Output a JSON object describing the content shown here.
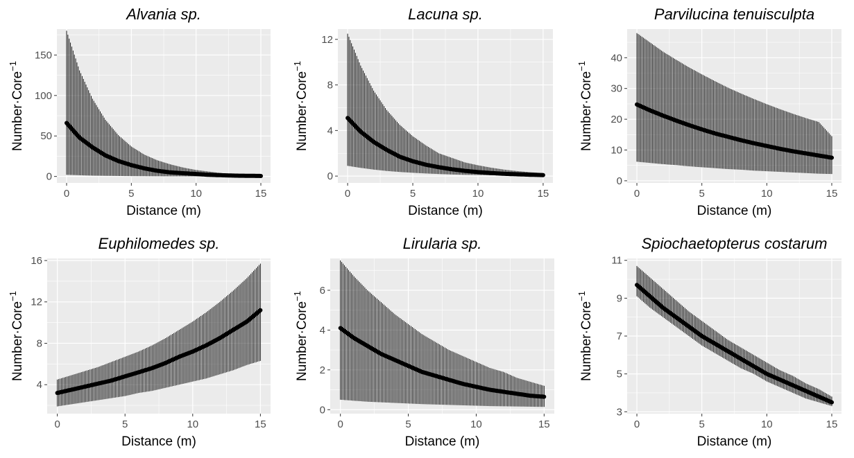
{
  "chart_data": [
    {
      "type": "line",
      "title": "Alvania sp.",
      "xlabel": "Distance (m)",
      "ylabel": "Number·Core",
      "ylabel_superscript": "−1",
      "xlim": [
        -0.75,
        15.75
      ],
      "ylim": [
        -8,
        182
      ],
      "xticks": [
        0,
        5,
        10,
        15
      ],
      "yticks": [
        0,
        50,
        100,
        150
      ],
      "series": [
        {
          "x": [
            0,
            1,
            2,
            3,
            4,
            5,
            6,
            7,
            8,
            9,
            10,
            11,
            12,
            13,
            14,
            15
          ],
          "y": [
            66,
            48,
            36,
            26,
            19,
            14,
            10,
            7,
            5,
            4,
            3,
            2,
            1.5,
            1,
            0.8,
            0.6
          ],
          "upper": [
            180,
            131,
            96,
            70,
            51,
            37,
            27,
            20,
            15,
            11,
            8,
            6,
            4,
            3,
            2,
            1.5
          ],
          "lower": [
            2,
            1.5,
            1,
            0.8,
            0.6,
            0.4,
            0.3,
            0.2,
            0.15,
            0.1,
            0.08,
            0.06,
            0.04,
            0.03,
            0.02,
            0.01
          ]
        }
      ]
    },
    {
      "type": "line",
      "title": "Lacuna sp.",
      "xlabel": "Distance (m)",
      "ylabel": "Number·Core",
      "ylabel_superscript": "−1",
      "xlim": [
        -0.75,
        15.75
      ],
      "ylim": [
        -0.6,
        12.9
      ],
      "xticks": [
        0,
        5,
        10,
        15
      ],
      "yticks": [
        0,
        4,
        8,
        12
      ],
      "series": [
        {
          "x": [
            0,
            1,
            2,
            3,
            4,
            5,
            6,
            7,
            8,
            9,
            10,
            11,
            12,
            13,
            14,
            15
          ],
          "y": [
            5.1,
            3.9,
            3.0,
            2.3,
            1.7,
            1.3,
            1.0,
            0.78,
            0.6,
            0.46,
            0.35,
            0.27,
            0.2,
            0.16,
            0.12,
            0.09
          ],
          "upper": [
            12.5,
            9.7,
            7.5,
            5.8,
            4.5,
            3.5,
            2.7,
            2.0,
            1.6,
            1.2,
            0.95,
            0.74,
            0.57,
            0.44,
            0.34,
            0.26
          ],
          "lower": [
            0.9,
            0.72,
            0.57,
            0.45,
            0.36,
            0.29,
            0.23,
            0.18,
            0.14,
            0.11,
            0.09,
            0.07,
            0.06,
            0.05,
            0.04,
            0.03
          ]
        }
      ]
    },
    {
      "type": "line",
      "title": "Parvilucina tenuisculpta",
      "xlabel": "Distance (m)",
      "ylabel": "Number·Core",
      "ylabel_superscript": "−1",
      "xlim": [
        -0.75,
        15.75
      ],
      "ylim": [
        -0.7,
        49.3
      ],
      "xticks": [
        0,
        5,
        10,
        15
      ],
      "yticks": [
        0,
        10,
        20,
        30,
        40
      ],
      "series": [
        {
          "x": [
            0,
            1,
            2,
            3,
            4,
            5,
            6,
            7,
            8,
            9,
            10,
            11,
            12,
            13,
            14,
            15
          ],
          "y": [
            24.8,
            22.9,
            21.2,
            19.6,
            18.1,
            16.7,
            15.4,
            14.3,
            13.2,
            12.2,
            11.3,
            10.4,
            9.6,
            8.9,
            8.2,
            7.5
          ],
          "upper": [
            48,
            45,
            42,
            39.4,
            36.9,
            34.6,
            32.4,
            30.3,
            28.4,
            26.6,
            24.9,
            23.3,
            21.8,
            20.4,
            19.1,
            14.5
          ],
          "lower": [
            6.2,
            5.8,
            5.4,
            5.1,
            4.7,
            4.4,
            4.1,
            3.8,
            3.6,
            3.3,
            3.1,
            2.9,
            2.7,
            2.5,
            2.3,
            2.2
          ]
        }
      ]
    },
    {
      "type": "line",
      "title": "Euphilomedes sp.",
      "xlabel": "Distance (m)",
      "ylabel": "Number·Core",
      "ylabel_superscript": "−1",
      "xlim": [
        -0.75,
        15.75
      ],
      "ylim": [
        1.2,
        16.2
      ],
      "xticks": [
        0,
        5,
        10,
        15
      ],
      "yticks": [
        4,
        8,
        12,
        16
      ],
      "series": [
        {
          "x": [
            0,
            1,
            2,
            3,
            4,
            5,
            6,
            7,
            8,
            9,
            10,
            11,
            12,
            13,
            14,
            15
          ],
          "y": [
            3.2,
            3.5,
            3.8,
            4.1,
            4.4,
            4.8,
            5.2,
            5.6,
            6.1,
            6.7,
            7.2,
            7.8,
            8.5,
            9.3,
            10.1,
            11.2
          ],
          "upper": [
            4.5,
            4.9,
            5.3,
            5.7,
            6.2,
            6.7,
            7.2,
            7.8,
            8.5,
            9.3,
            10.1,
            11.0,
            12.0,
            13.1,
            14.3,
            15.7
          ],
          "lower": [
            1.9,
            2.1,
            2.3,
            2.5,
            2.7,
            2.9,
            3.2,
            3.4,
            3.7,
            4.0,
            4.3,
            4.6,
            5.0,
            5.4,
            5.9,
            6.3
          ]
        }
      ]
    },
    {
      "type": "line",
      "title": "Lirularia sp.",
      "xlabel": "Distance (m)",
      "ylabel": "Number·Core",
      "ylabel_superscript": "−1",
      "xlim": [
        -0.75,
        15.75
      ],
      "ylim": [
        -0.2,
        7.6
      ],
      "xticks": [
        0,
        5,
        10,
        15
      ],
      "yticks": [
        0,
        2,
        4,
        6
      ],
      "series": [
        {
          "x": [
            0,
            1,
            2,
            3,
            4,
            5,
            6,
            7,
            8,
            9,
            10,
            11,
            12,
            13,
            14,
            15
          ],
          "y": [
            4.1,
            3.6,
            3.2,
            2.8,
            2.5,
            2.2,
            1.9,
            1.7,
            1.5,
            1.3,
            1.15,
            1.0,
            0.9,
            0.8,
            0.7,
            0.65
          ],
          "upper": [
            7.5,
            6.7,
            6.0,
            5.4,
            4.8,
            4.3,
            3.8,
            3.4,
            3.0,
            2.7,
            2.4,
            2.1,
            1.9,
            1.6,
            1.4,
            1.2
          ],
          "lower": [
            0.5,
            0.45,
            0.4,
            0.37,
            0.34,
            0.31,
            0.28,
            0.26,
            0.24,
            0.22,
            0.2,
            0.18,
            0.17,
            0.16,
            0.15,
            0.14
          ]
        }
      ]
    },
    {
      "type": "line",
      "title": "Spiochaetopterus costarum",
      "xlabel": "Distance (m)",
      "ylabel": "Number·Core",
      "ylabel_superscript": "−1",
      "xlim": [
        -0.75,
        15.75
      ],
      "ylim": [
        2.9,
        11.1
      ],
      "xticks": [
        0,
        5,
        10,
        15
      ],
      "yticks": [
        3,
        5,
        7,
        9,
        11
      ],
      "series": [
        {
          "x": [
            0,
            1,
            2,
            3,
            4,
            5,
            6,
            7,
            8,
            9,
            10,
            11,
            12,
            13,
            14,
            15
          ],
          "y": [
            9.7,
            9.1,
            8.5,
            8.0,
            7.5,
            7.0,
            6.6,
            6.2,
            5.8,
            5.4,
            5.0,
            4.7,
            4.4,
            4.1,
            3.8,
            3.5
          ],
          "upper": [
            10.7,
            10.1,
            9.5,
            8.9,
            8.3,
            7.8,
            7.3,
            6.8,
            6.4,
            6.0,
            5.6,
            5.2,
            4.9,
            4.5,
            4.2,
            3.8
          ],
          "lower": [
            9.1,
            8.5,
            8.0,
            7.5,
            7.0,
            6.5,
            6.1,
            5.7,
            5.3,
            5.0,
            4.6,
            4.3,
            4.0,
            3.7,
            3.5,
            3.3
          ]
        }
      ]
    }
  ]
}
